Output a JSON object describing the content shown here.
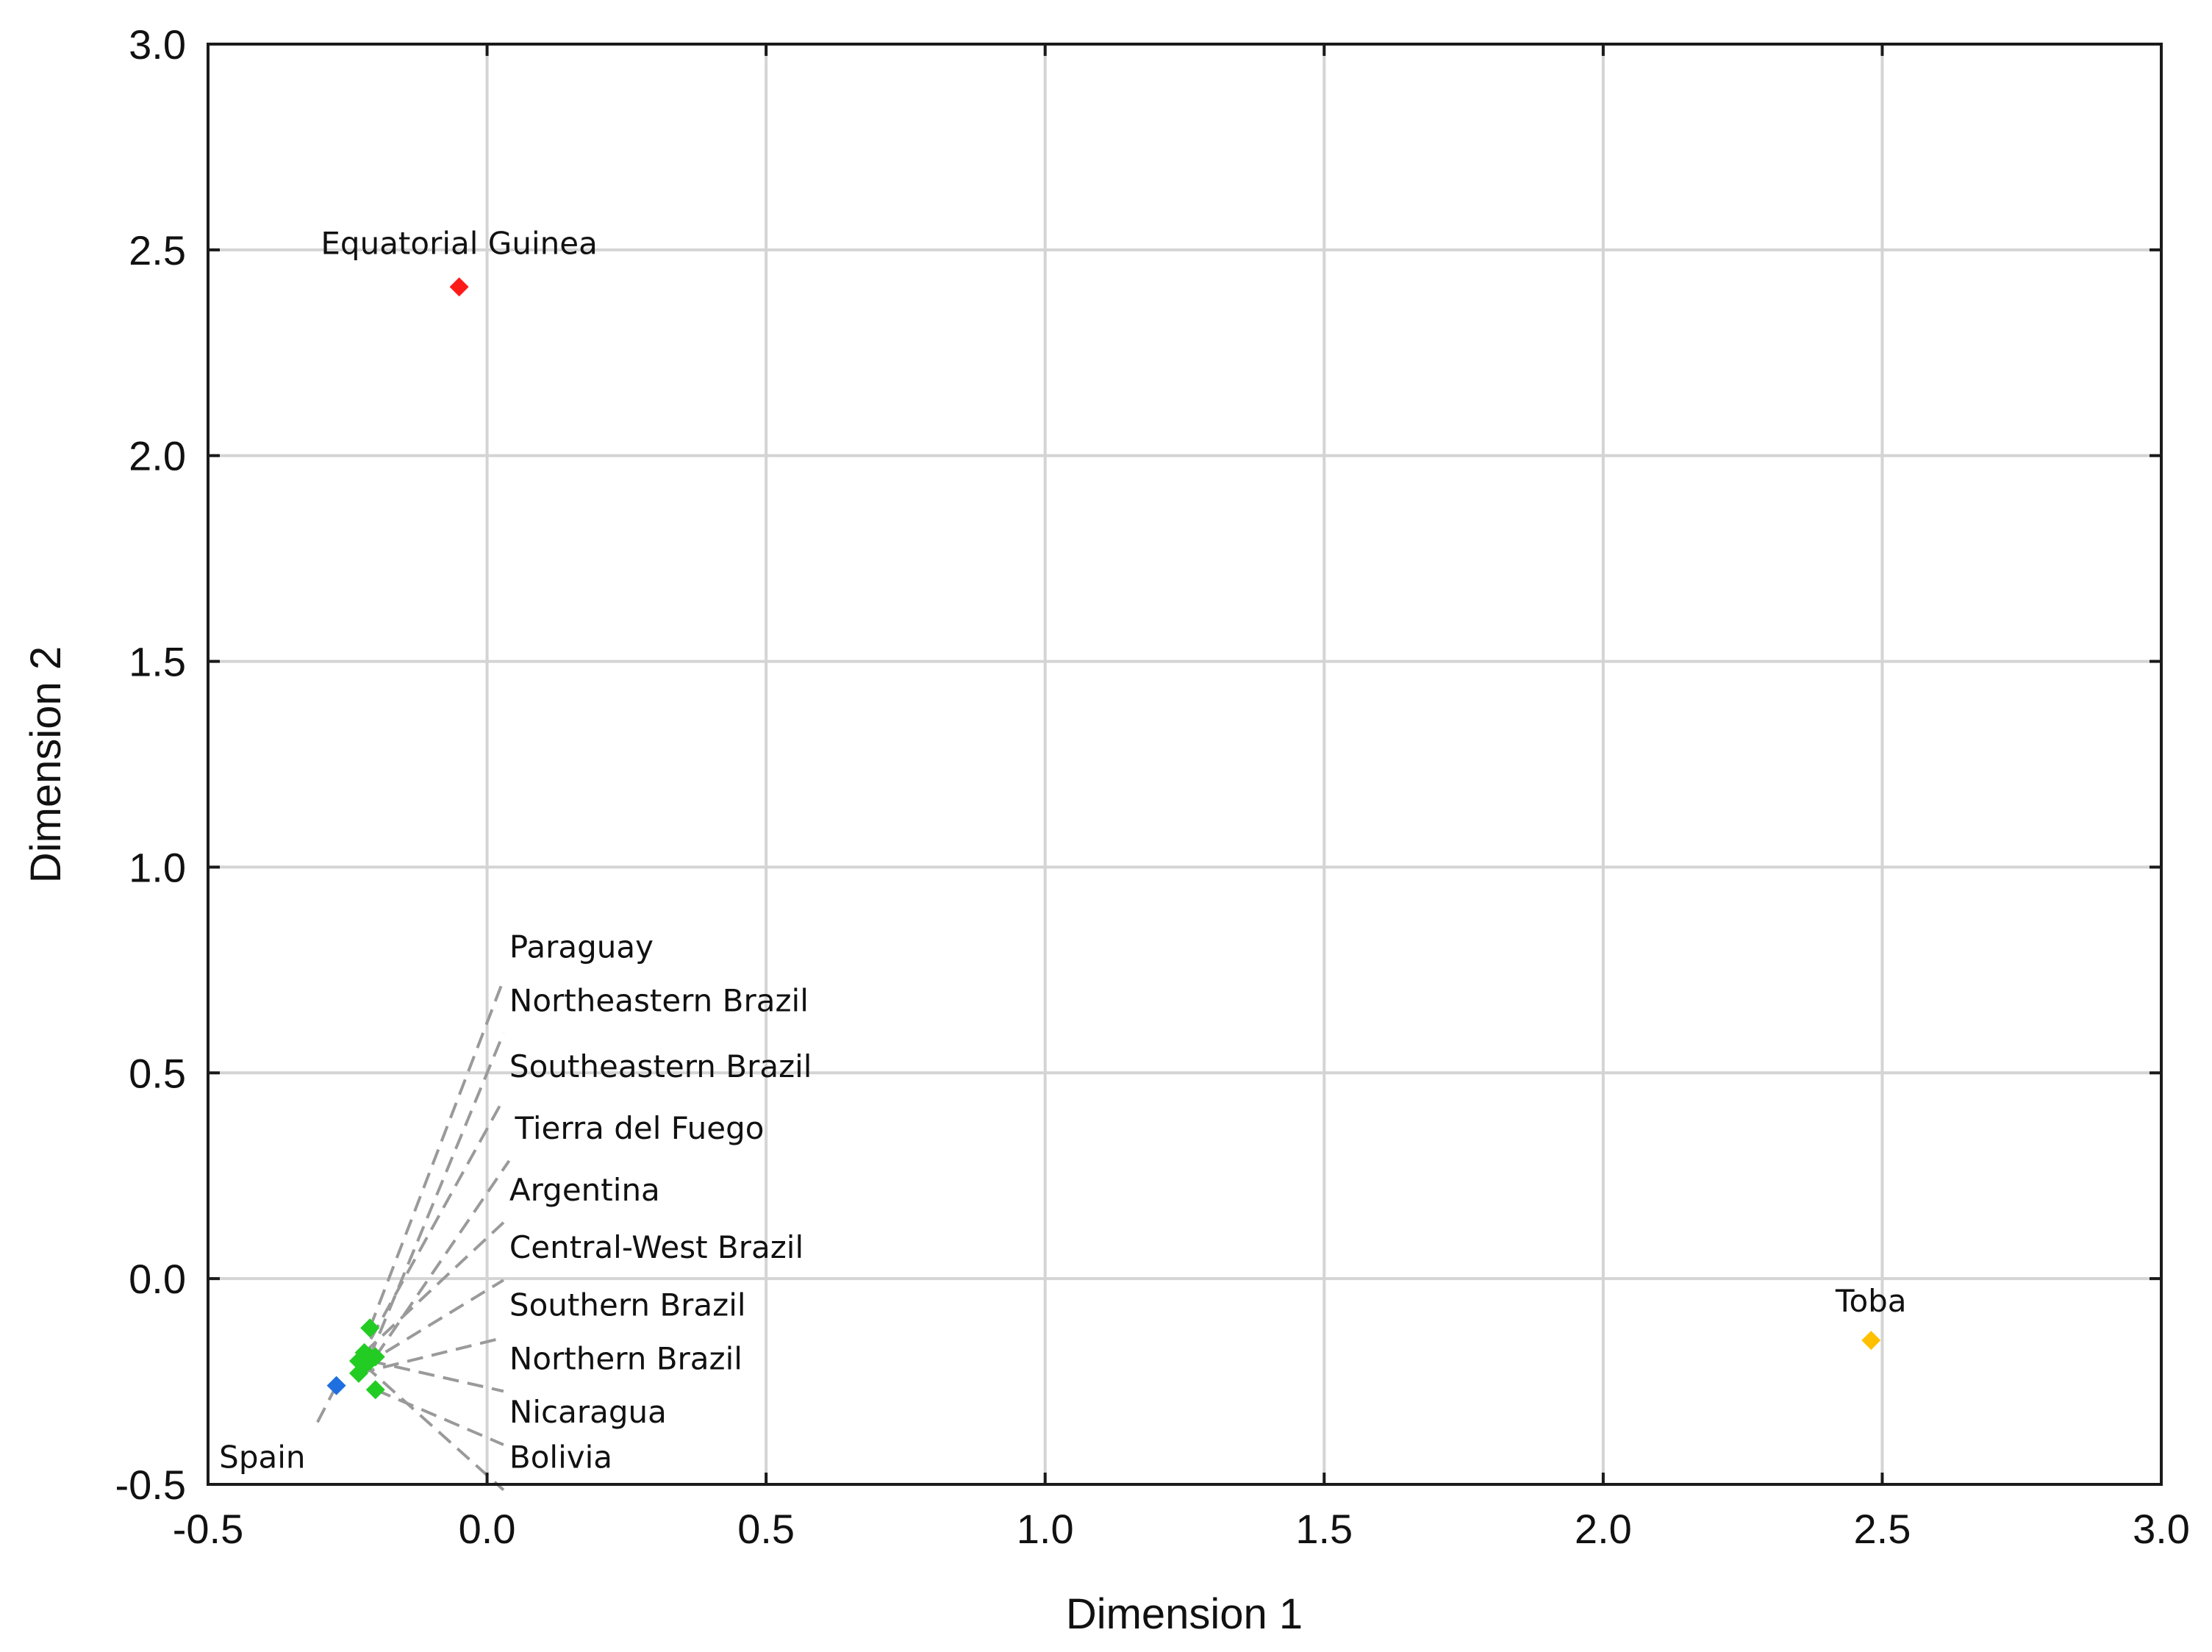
{
  "chart_data": {
    "type": "scatter",
    "title": "",
    "xlabel": "Dimension 1",
    "ylabel": "Dimension 2",
    "xlim": [
      -0.5,
      3.0
    ],
    "ylim": [
      -0.5,
      3.0
    ],
    "xticks": [
      "-0.5",
      "0.0",
      "0.5",
      "1.0",
      "1.5",
      "2.0",
      "2.5",
      "3.0"
    ],
    "yticks": [
      "-0.5",
      "0.0",
      "0.5",
      "1.0",
      "1.5",
      "2.0",
      "2.5",
      "3.0"
    ],
    "grid": true,
    "points": [
      {
        "label": "Equatorial Guinea",
        "x": -0.05,
        "y": 2.41,
        "color": "#ff1a1a",
        "label_pos": {
          "x": -0.05,
          "y": 2.49
        },
        "leader": false
      },
      {
        "label": "Toba",
        "x": 2.48,
        "y": -0.15,
        "color": "#ffc000",
        "label_pos": {
          "x": 2.48,
          "y": -0.08
        },
        "leader": false
      },
      {
        "label": "Spain",
        "x": -0.27,
        "y": -0.26,
        "color": "#1f6fe0",
        "label_pos": {
          "x": -0.48,
          "y": -0.46
        },
        "leader": true
      },
      {
        "label": "Paraguay",
        "x": -0.21,
        "y": -0.12,
        "color": "#22cc22",
        "label_pos": {
          "x": 0.04,
          "y": 0.78
        },
        "leader": true
      },
      {
        "label": "Northeastern Brazil",
        "x": -0.21,
        "y": -0.19,
        "color": "#22cc22",
        "label_pos": {
          "x": 0.04,
          "y": 0.65
        },
        "leader": true
      },
      {
        "label": "Southeastern Brazil",
        "x": -0.23,
        "y": -0.2,
        "color": "#22cc22",
        "label_pos": {
          "x": 0.04,
          "y": 0.49
        },
        "leader": true
      },
      {
        "label": "Tierra del Fuego",
        "x": -0.2,
        "y": -0.19,
        "color": "#22cc22",
        "label_pos": {
          "x": 0.05,
          "y": 0.34
        },
        "leader": true
      },
      {
        "label": "Argentina",
        "x": -0.22,
        "y": -0.18,
        "color": "#22cc22",
        "label_pos": {
          "x": 0.04,
          "y": 0.19
        },
        "leader": true
      },
      {
        "label": "Central-West Brazil",
        "x": -0.22,
        "y": -0.21,
        "color": "#22cc22",
        "label_pos": {
          "x": 0.04,
          "y": 0.05
        },
        "leader": true
      },
      {
        "label": "Southern Brazil",
        "x": -0.23,
        "y": -0.23,
        "color": "#22cc22",
        "label_pos": {
          "x": 0.04,
          "y": -0.09
        },
        "leader": true
      },
      {
        "label": "Northern Brazil",
        "x": -0.21,
        "y": -0.2,
        "color": "#22cc22",
        "label_pos": {
          "x": 0.04,
          "y": -0.22
        },
        "leader": true
      },
      {
        "label": "Nicaragua",
        "x": -0.2,
        "y": -0.27,
        "color": "#22cc22",
        "label_pos": {
          "x": 0.04,
          "y": -0.35
        },
        "leader": true
      },
      {
        "label": "Bolivia",
        "x": -0.22,
        "y": -0.21,
        "color": "#22cc22",
        "label_pos": {
          "x": 0.04,
          "y": -0.46
        },
        "leader": true
      }
    ]
  }
}
